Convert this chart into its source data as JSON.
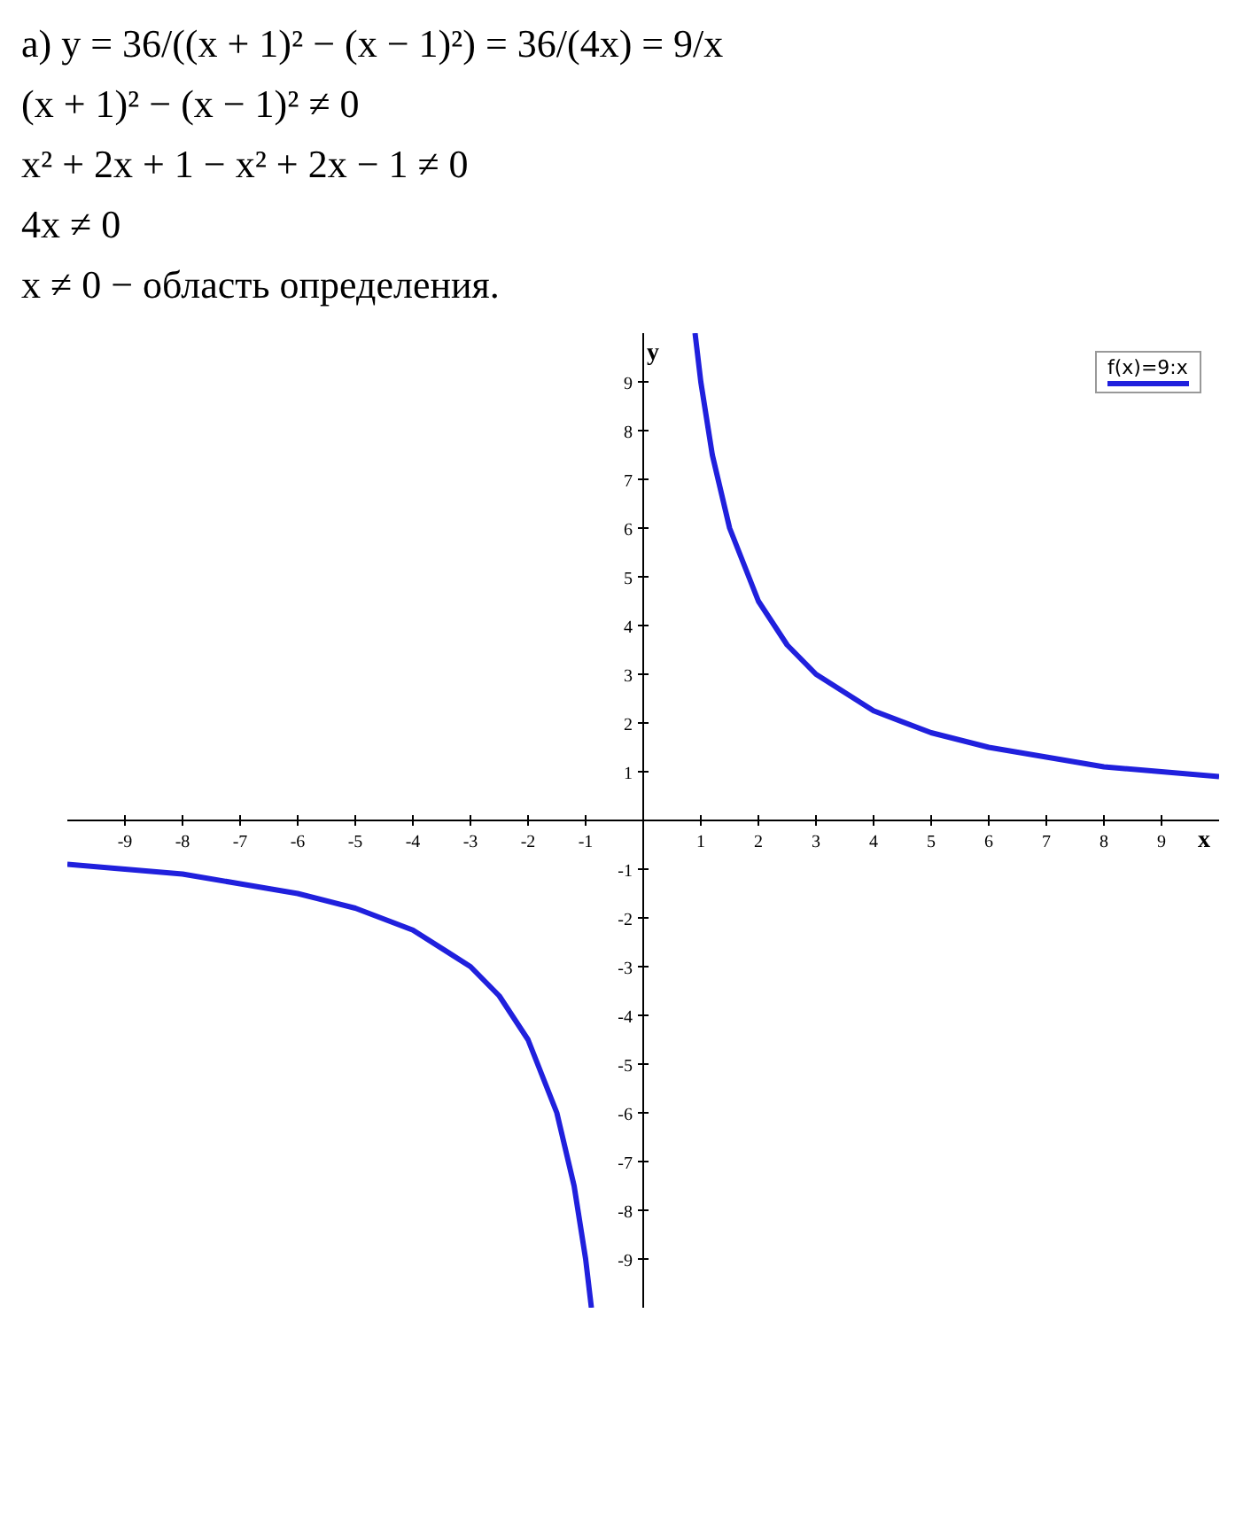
{
  "chart_data": {
    "type": "line",
    "annotations": [
      "а) y = 36/((x + 1)² − (x − 1)²) = 36/(4x) = 9/x",
      "(x + 1)² − (x − 1)² ≠ 0",
      "x² + 2x + 1 − x² + 2x − 1 ≠ 0",
      "4x ≠ 0",
      "x ≠ 0 − область определения."
    ],
    "xlabel": "x",
    "ylabel": "y",
    "series": [
      {
        "name": "f(x)=9:x",
        "color": "#2020dd",
        "x": [
          -10,
          -9,
          -8,
          -7,
          -6,
          -5,
          -4,
          -3,
          -2.5,
          -2,
          -1.5,
          -1.2,
          -1,
          -0.9,
          null,
          0.9,
          1,
          1.2,
          1.5,
          2,
          2.5,
          3,
          4,
          5,
          6,
          7,
          8,
          9,
          10
        ],
        "values": [
          -0.9,
          -1,
          -1.1,
          -1.3,
          -1.5,
          -1.8,
          -2.25,
          -3,
          -3.6,
          -4.5,
          -6,
          -7.5,
          -9,
          -10,
          null,
          10,
          9,
          7.5,
          6,
          4.5,
          3.6,
          3,
          2.25,
          1.8,
          1.5,
          1.3,
          1.1,
          1,
          0.9
        ]
      }
    ],
    "xlim": [
      -10,
      10
    ],
    "ylim": [
      -10,
      10
    ],
    "xticks": [
      -9,
      -8,
      -7,
      -6,
      -5,
      -4,
      -3,
      -2,
      -1,
      1,
      2,
      3,
      4,
      5,
      6,
      7,
      8,
      9
    ],
    "yticks": [
      -9,
      -8,
      -7,
      -6,
      -5,
      -4,
      -3,
      -2,
      -1,
      1,
      2,
      3,
      4,
      5,
      6,
      7,
      8,
      9
    ],
    "legend": "top right",
    "marker": "none",
    "line_style": "solid",
    "grid": false
  }
}
